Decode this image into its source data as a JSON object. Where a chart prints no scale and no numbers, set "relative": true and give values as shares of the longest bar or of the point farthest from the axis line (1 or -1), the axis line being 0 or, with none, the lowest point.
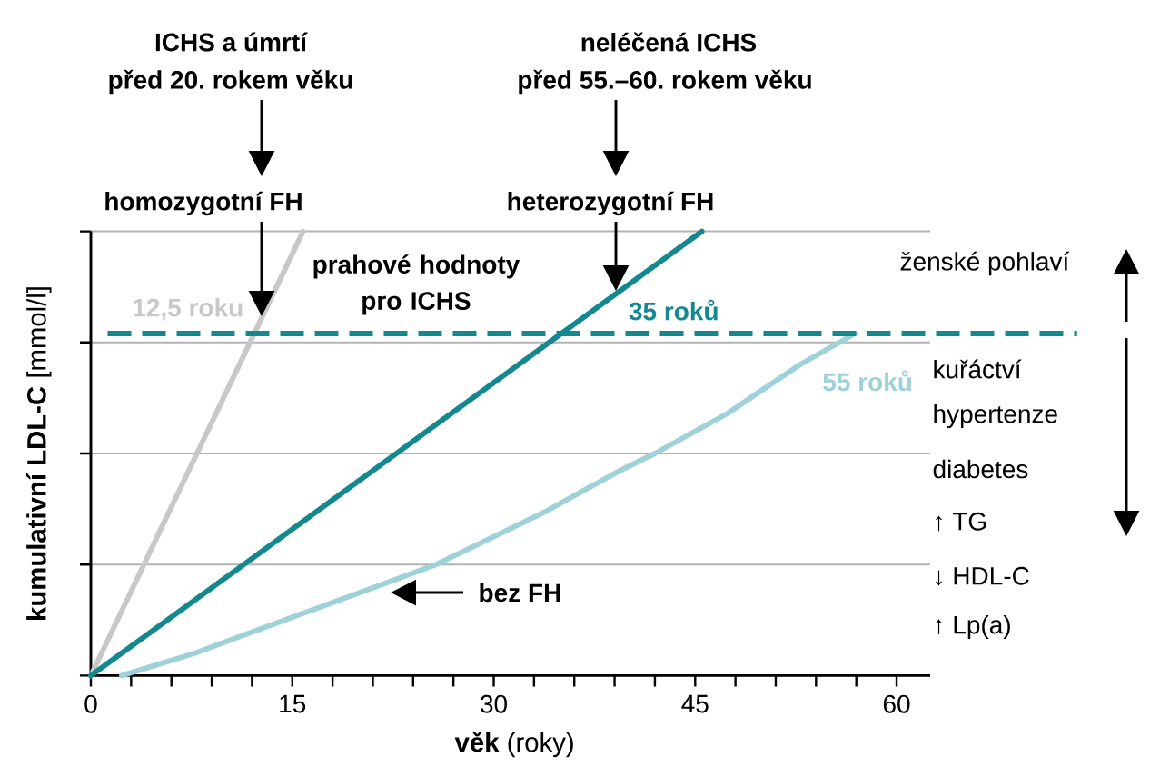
{
  "chart_data": {
    "type": "line",
    "relative": true,
    "xlabel": "**věk** (roky)",
    "ylabel": "**kumulativní LDL-C** [mmol/l]",
    "xlim": [
      0,
      62.5
    ],
    "xticks": [
      0,
      {
        "value": 3,
        "label": null
      },
      {
        "value": 6,
        "label": null
      },
      {
        "value": 9,
        "label": null
      },
      {
        "value": 12,
        "label": null
      },
      15,
      {
        "value": 18,
        "label": null
      },
      {
        "value": 21,
        "label": null
      },
      {
        "value": 24,
        "label": null
      },
      {
        "value": 27,
        "label": null
      },
      30,
      {
        "value": 33,
        "label": null
      },
      {
        "value": 36,
        "label": null
      },
      {
        "value": 39,
        "label": null
      },
      {
        "value": 42,
        "label": null
      },
      45,
      {
        "value": 48,
        "label": null
      },
      {
        "value": 51,
        "label": null
      },
      {
        "value": 54,
        "label": null
      },
      {
        "value": 57,
        "label": null
      },
      60
    ],
    "grid": "y",
    "series": [
      {
        "name": "homozygotní FH",
        "color": "#c8c8c8",
        "x": [
          0,
          15.8
        ],
        "values": [
          0,
          1
        ]
      },
      {
        "name": "heterozygotní FH",
        "color": "#14888f",
        "x": [
          0,
          45.5
        ],
        "values": [
          0,
          1
        ]
      },
      {
        "name": "bez FH",
        "color": "#9fd2d8",
        "x": [
          2.3,
          7.7,
          14.9,
          21.2,
          25.7,
          33.9,
          39.3,
          42.0,
          47.4,
          52.8,
          56.9
        ],
        "values": [
          0,
          0.05,
          0.13,
          0.2,
          0.25,
          0.37,
          0.46,
          0.5,
          0.59,
          0.7,
          0.77
        ]
      }
    ],
    "ref_lines": [
      {
        "axis": "y",
        "value": 0.77,
        "label": "prahové hodnoty pro ICHS",
        "color": "#14888f",
        "line_style": "dashed"
      }
    ],
    "annotations": [
      "ICHS a úmrtí",
      "před 20. rokem věku",
      "neléčená ICHS",
      "před 55.–60. rokem věku",
      {
        "text": "12,5 roku",
        "x": 12.5,
        "y": 0.77
      },
      {
        "text": "35 roků",
        "x": 35,
        "y": 0.77
      },
      {
        "text": "55 roků",
        "x": 55,
        "y": 0.77
      },
      "ženské pohlaví",
      "kuřáctví",
      "hypertenze",
      "diabetes",
      "↑ TG",
      "↓ HDL-C",
      "↑ Lp(a)"
    ]
  }
}
